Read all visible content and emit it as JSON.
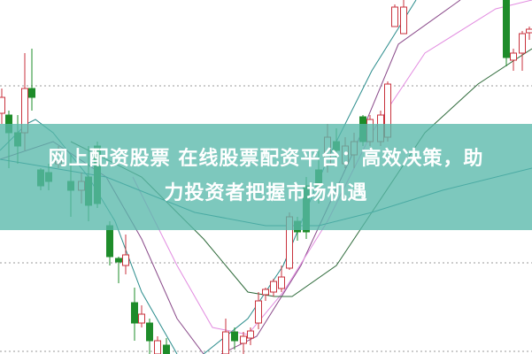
{
  "article": {
    "title_line1": "网上配资股票 在线股票配资平台：高效决策，助",
    "title_line2": "力投资者把握市场机遇"
  },
  "colors": {
    "up": "#c8323c",
    "down": "#1e8c2a",
    "banner": "#58b8aa"
  }
}
